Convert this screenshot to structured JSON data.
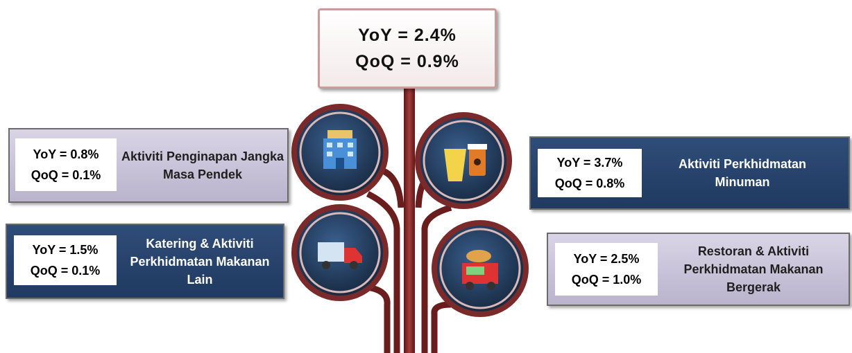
{
  "header": {
    "yoy": "YoY = 2.4%",
    "qoq": "QoQ = 0.9%"
  },
  "items": [
    {
      "label": "Aktiviti Penginapan Jangka Masa Pendek",
      "yoy": "YoY = 0.8%",
      "qoq": "QoQ = 0.1%"
    },
    {
      "label": "Aktiviti Perkhidmatan Minuman",
      "yoy": "YoY = 3.7%",
      "qoq": "QoQ = 0.8%"
    },
    {
      "label": "Katering & Aktiviti Perkhidmatan Makanan Lain",
      "yoy": "YoY = 1.5%",
      "qoq": "QoQ = 0.1%"
    },
    {
      "label": "Restoran & Aktiviti Perkhidmatan Makanan Bergerak",
      "yoy": "YoY = 2.5%",
      "qoq": "QoQ = 1.0%"
    }
  ]
}
